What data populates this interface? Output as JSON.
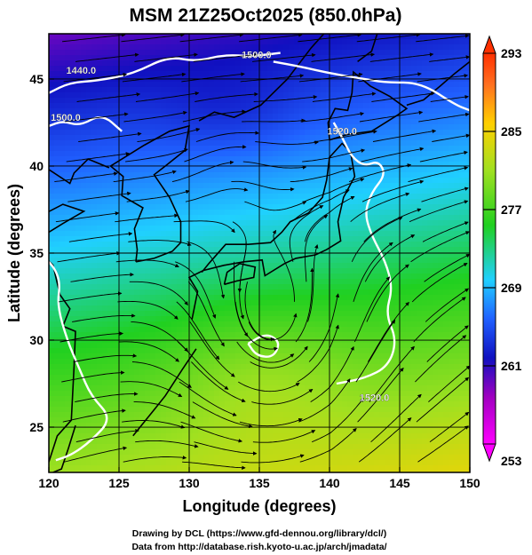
{
  "title": "MSM 21Z25Oct2025 (850.0hPa)",
  "axes": {
    "xlabel": "Longitude (degrees)",
    "ylabel": "Latitude  (degrees)",
    "xlim": [
      120,
      150
    ],
    "ylim": [
      22.4,
      47.6
    ],
    "xticks": [
      120,
      125,
      130,
      135,
      140,
      145,
      150
    ],
    "yticks": [
      25,
      30,
      35,
      40,
      45
    ]
  },
  "colorbar": {
    "ticks": [
      253,
      261,
      269,
      277,
      285,
      293
    ],
    "range": [
      253,
      293
    ]
  },
  "contour_labels": [
    {
      "text": "1440.0",
      "lon": 122.3,
      "lat": 45.3
    },
    {
      "text": "1500.0",
      "lon": 121.2,
      "lat": 42.6
    },
    {
      "text": "1500.0",
      "lon": 134.8,
      "lat": 46.2
    },
    {
      "text": "1520.0",
      "lon": 140.9,
      "lat": 41.8
    },
    {
      "text": "1520.0",
      "lon": 143.2,
      "lat": 26.5
    }
  ],
  "credits": {
    "line1": "Drawing by DCL (https://www.gfd-dennou.org/library/dcl/)",
    "line2": "Data from http://database.rish.kyoto-u.ac.jp/arch/jmadata/"
  },
  "colors": {
    "colorbar_scale": [
      "#ff00ff",
      "#1010c0",
      "#2060ff",
      "#20d0ff",
      "#20d020",
      "#a0e020",
      "#ffd000",
      "#ff6020",
      "#ff3000"
    ]
  }
}
